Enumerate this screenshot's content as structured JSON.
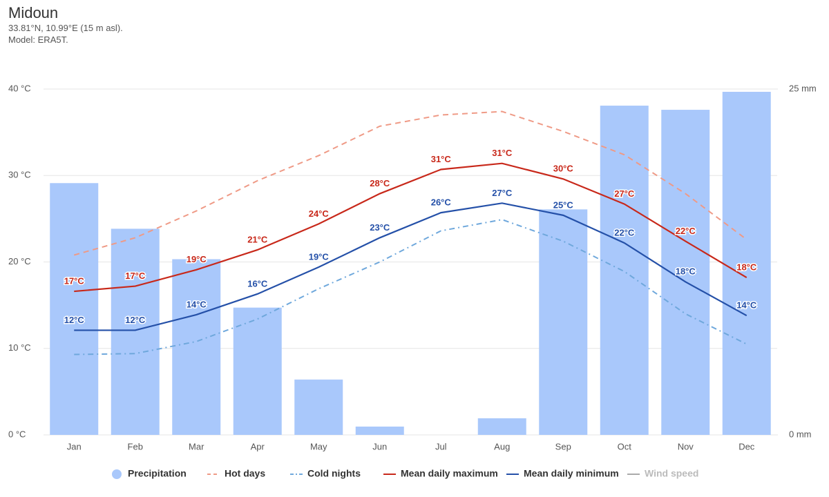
{
  "chart_data": {
    "type": "combo",
    "title": "Midoun",
    "subtitle": [
      "33.81°N, 10.99°E (15 m asl).",
      "Model: ERA5T."
    ],
    "categories": [
      "Jan",
      "Feb",
      "Mar",
      "Apr",
      "May",
      "Jun",
      "Jul",
      "Aug",
      "Sep",
      "Oct",
      "Nov",
      "Dec"
    ],
    "ylim": [
      0,
      40
    ],
    "yticks": [
      {
        "value": 0,
        "label": "0 °C"
      },
      {
        "value": 10,
        "label": "10 °C"
      },
      {
        "value": 20,
        "label": "20 °C"
      },
      {
        "value": 30,
        "label": "30 °C"
      },
      {
        "value": 40,
        "label": "40 °C"
      }
    ],
    "y2lim": [
      0,
      25
    ],
    "y2ticks": [
      {
        "value": 0,
        "label": "0 mm"
      },
      {
        "value": 25,
        "label": "25 mm"
      }
    ],
    "grid": true,
    "series": [
      {
        "name": "Precipitation",
        "type": "bar",
        "axis": "y2",
        "color": "#a9c8fb",
        "values": [
          18.2,
          14.9,
          12.7,
          9.2,
          4.0,
          0.6,
          0,
          1.2,
          16.3,
          23.8,
          23.5,
          24.8
        ]
      },
      {
        "name": "Hot days",
        "type": "line",
        "dash": "dash",
        "color": "#ef9a86",
        "values": [
          20.8,
          22.8,
          25.9,
          29.4,
          32.3,
          35.7,
          37.0,
          37.4,
          35.1,
          32.4,
          27.9,
          22.6
        ]
      },
      {
        "name": "Cold nights",
        "type": "line",
        "dash": "dashdot",
        "color": "#6fa8dc",
        "values": [
          9.3,
          9.4,
          10.8,
          13.4,
          16.9,
          20.0,
          23.6,
          24.9,
          22.4,
          18.9,
          14.0,
          10.5
        ]
      },
      {
        "name": "Mean daily maximum",
        "type": "line",
        "color": "#c8281a",
        "values": [
          16.6,
          17.2,
          19.1,
          21.4,
          24.4,
          27.9,
          30.7,
          31.4,
          29.6,
          26.7,
          22.4,
          18.2
        ],
        "value_labels": [
          "17°C",
          "17°C",
          "19°C",
          "21°C",
          "24°C",
          "28°C",
          "31°C",
          "31°C",
          "30°C",
          "27°C",
          "22°C",
          "18°C"
        ]
      },
      {
        "name": "Mean daily minimum",
        "type": "line",
        "color": "#2450a8",
        "values": [
          12.1,
          12.1,
          13.9,
          16.3,
          19.4,
          22.8,
          25.7,
          26.8,
          25.4,
          22.2,
          17.7,
          13.8
        ],
        "value_labels": [
          "12°C",
          "12°C",
          "14°C",
          "16°C",
          "19°C",
          "23°C",
          "26°C",
          "27°C",
          "25°C",
          "22°C",
          "18°C",
          "14°C"
        ]
      },
      {
        "name": "Wind speed",
        "type": "line",
        "hidden": true,
        "color": "#aaaaaa"
      }
    ]
  }
}
